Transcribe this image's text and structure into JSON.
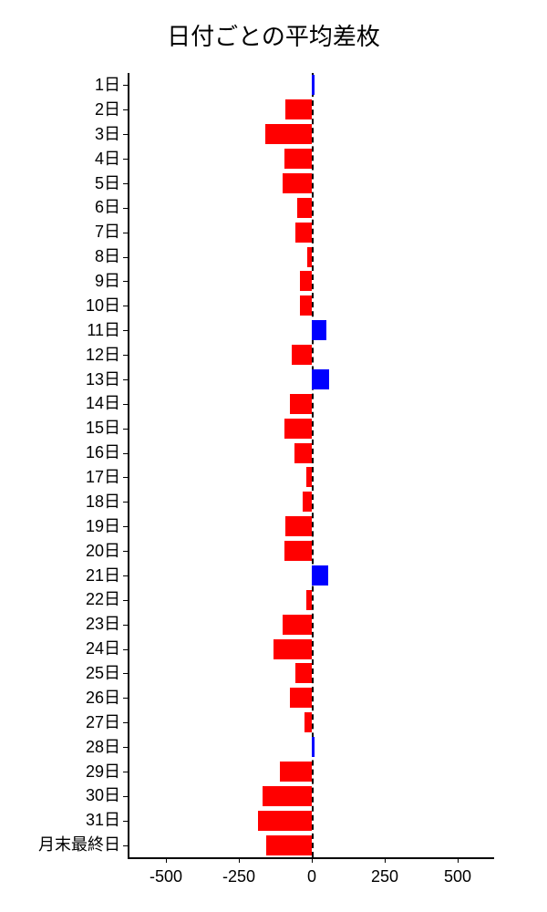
{
  "chart": {
    "type": "bar-horizontal",
    "title": "日付ごとの平均差枚",
    "title_fontsize": 26,
    "background_color": "#ffffff",
    "label_fontsize": 18,
    "positive_color": "#0000ff",
    "negative_color": "#ff0000",
    "axis_color": "#000000",
    "zero_line_style": "dashed",
    "xlim": [
      -625,
      625
    ],
    "xticks": [
      -500,
      -250,
      0,
      250,
      500
    ],
    "bar_height_ratio": 0.82,
    "categories": [
      "1日",
      "2日",
      "3日",
      "4日",
      "5日",
      "6日",
      "7日",
      "8日",
      "9日",
      "10日",
      "11日",
      "12日",
      "13日",
      "14日",
      "15日",
      "16日",
      "17日",
      "18日",
      "19日",
      "20日",
      "21日",
      "22日",
      "23日",
      "24日",
      "25日",
      "26日",
      "27日",
      "28日",
      "29日",
      "30日",
      "31日",
      "月末最終日"
    ],
    "values": [
      8,
      -90,
      -160,
      -95,
      -100,
      -50,
      -55,
      -15,
      -40,
      -40,
      50,
      -70,
      60,
      -75,
      -95,
      -60,
      -20,
      -30,
      -90,
      -95,
      55,
      -20,
      -100,
      -130,
      -55,
      -75,
      -25,
      10,
      -110,
      -170,
      -185,
      -155
    ]
  }
}
